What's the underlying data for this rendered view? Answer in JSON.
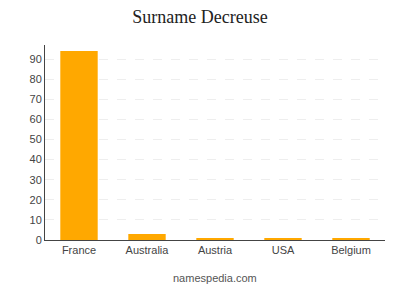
{
  "chart_data": {
    "type": "bar",
    "title": "Surname Decreuse",
    "categories": [
      "France",
      "Australia",
      "Austria",
      "USA",
      "Belgium"
    ],
    "values": [
      94,
      3,
      1,
      1,
      1
    ],
    "color": "#FFA800",
    "ylim": [
      0,
      97
    ],
    "yticks": [
      0,
      10,
      20,
      30,
      40,
      50,
      60,
      70,
      80,
      90
    ],
    "grid": true,
    "annotations": [
      "namespedia.com"
    ]
  }
}
